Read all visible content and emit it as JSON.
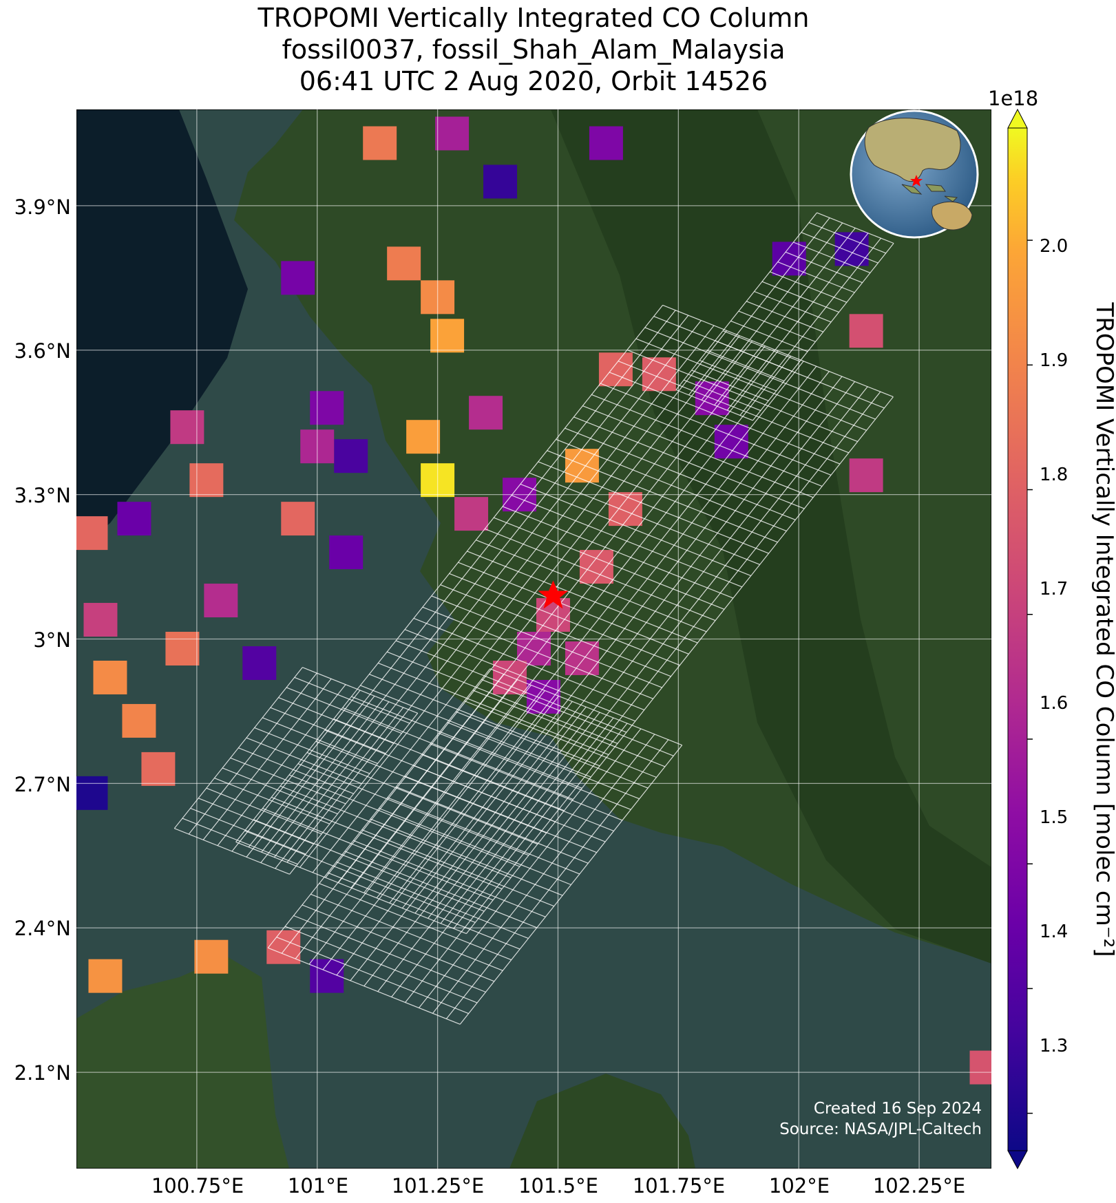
{
  "title": {
    "line1": "TROPOMI Vertically Integrated CO Column",
    "line2": "fossil0037, fossil_Shah_Alam_Malaysia",
    "line3": "06:41 UTC 2 Aug 2020, Orbit 14526"
  },
  "axes": {
    "lat_ticks": [
      "3.9°N",
      "3.6°N",
      "3.3°N",
      "3°N",
      "2.7°N",
      "2.4°N",
      "2.1°N"
    ],
    "lat_values": [
      3.9,
      3.6,
      3.3,
      3.0,
      2.7,
      2.4,
      2.1
    ],
    "lon_ticks": [
      "100.75°E",
      "101°E",
      "101.25°E",
      "101.5°E",
      "101.75°E",
      "102°E",
      "102.25°E"
    ],
    "lon_values": [
      100.75,
      101.0,
      101.25,
      101.5,
      101.75,
      102.0,
      102.25
    ],
    "lon_range": [
      100.5,
      102.4
    ],
    "lat_range": [
      1.9,
      4.1
    ],
    "grid": true
  },
  "colorbar": {
    "label": "TROPOMI Vertically Integrated CO Column [molec cm⁻²]",
    "exponent": "1e18",
    "ticks": [
      "1.3",
      "1.4",
      "1.5",
      "1.6",
      "1.7",
      "1.8",
      "1.9",
      "2.0"
    ],
    "range": [
      1.27,
      2.09
    ],
    "colormap": "plasma",
    "extend": "both"
  },
  "site_marker": {
    "name": "Shah Alam",
    "lon": 101.49,
    "lat": 3.09,
    "color": "#ff0000"
  },
  "credits": {
    "created": "Created 16 Sep 2024",
    "source": "Source: NASA/JPL-Caltech"
  },
  "colors": {
    "water": "#2f4a48",
    "deep_sea": "#0c1e2a",
    "land": "#2e4a26",
    "grid": "#ffffff"
  },
  "inset_globe": {
    "marker_color": "#ff0000"
  },
  "chart_data": {
    "type": "heatmap",
    "units": "1e18 molec cm-2",
    "pixels": [
      {
        "lon": 101.25,
        "lat": 3.33,
        "v": 2.07
      },
      {
        "lon": 101.22,
        "lat": 3.42,
        "v": 1.97
      },
      {
        "lon": 101.27,
        "lat": 3.63,
        "v": 1.98
      },
      {
        "lon": 101.25,
        "lat": 3.71,
        "v": 1.92
      },
      {
        "lon": 101.18,
        "lat": 3.78,
        "v": 1.88
      },
      {
        "lon": 101.13,
        "lat": 4.03,
        "v": 1.87
      },
      {
        "lon": 101.55,
        "lat": 3.36,
        "v": 1.96
      },
      {
        "lon": 100.57,
        "lat": 2.92,
        "v": 1.92
      },
      {
        "lon": 100.63,
        "lat": 2.83,
        "v": 1.9
      },
      {
        "lon": 100.56,
        "lat": 2.3,
        "v": 1.94
      },
      {
        "lon": 100.78,
        "lat": 2.34,
        "v": 1.93
      },
      {
        "lon": 100.53,
        "lat": 3.22,
        "v": 1.82
      },
      {
        "lon": 100.77,
        "lat": 3.33,
        "v": 1.83
      },
      {
        "lon": 100.96,
        "lat": 3.25,
        "v": 1.82
      },
      {
        "lon": 101.64,
        "lat": 3.27,
        "v": 1.8
      },
      {
        "lon": 101.62,
        "lat": 3.56,
        "v": 1.81
      },
      {
        "lon": 101.71,
        "lat": 3.55,
        "v": 1.79
      },
      {
        "lon": 101.58,
        "lat": 3.15,
        "v": 1.78
      },
      {
        "lon": 100.93,
        "lat": 2.36,
        "v": 1.8
      },
      {
        "lon": 100.72,
        "lat": 2.98,
        "v": 1.85
      },
      {
        "lon": 100.67,
        "lat": 2.73,
        "v": 1.83
      },
      {
        "lon": 101.49,
        "lat": 3.05,
        "v": 1.72
      },
      {
        "lon": 101.45,
        "lat": 2.98,
        "v": 1.62
      },
      {
        "lon": 101.55,
        "lat": 2.96,
        "v": 1.66
      },
      {
        "lon": 101.4,
        "lat": 2.92,
        "v": 1.72
      },
      {
        "lon": 101.47,
        "lat": 2.88,
        "v": 1.52
      },
      {
        "lon": 101.32,
        "lat": 3.26,
        "v": 1.68
      },
      {
        "lon": 101.35,
        "lat": 3.47,
        "v": 1.64
      },
      {
        "lon": 101.42,
        "lat": 3.3,
        "v": 1.52
      },
      {
        "lon": 101.82,
        "lat": 3.5,
        "v": 1.52
      },
      {
        "lon": 101.86,
        "lat": 3.41,
        "v": 1.47
      },
      {
        "lon": 102.14,
        "lat": 3.64,
        "v": 1.75
      },
      {
        "lon": 102.14,
        "lat": 3.34,
        "v": 1.68
      },
      {
        "lon": 102.39,
        "lat": 2.11,
        "v": 1.76
      },
      {
        "lon": 101.07,
        "lat": 3.38,
        "v": 1.38
      },
      {
        "lon": 101.02,
        "lat": 3.48,
        "v": 1.5
      },
      {
        "lon": 100.96,
        "lat": 3.75,
        "v": 1.48
      },
      {
        "lon": 101.38,
        "lat": 3.95,
        "v": 1.34
      },
      {
        "lon": 102.11,
        "lat": 3.81,
        "v": 1.36
      },
      {
        "lon": 101.98,
        "lat": 3.79,
        "v": 1.42
      },
      {
        "lon": 100.53,
        "lat": 2.68,
        "v": 1.3
      },
      {
        "lon": 100.62,
        "lat": 3.25,
        "v": 1.45
      },
      {
        "lon": 100.88,
        "lat": 2.95,
        "v": 1.4
      },
      {
        "lon": 101.06,
        "lat": 3.18,
        "v": 1.45
      },
      {
        "lon": 101.02,
        "lat": 2.3,
        "v": 1.4
      },
      {
        "lon": 101.6,
        "lat": 4.03,
        "v": 1.5
      },
      {
        "lon": 101.28,
        "lat": 4.05,
        "v": 1.6
      },
      {
        "lon": 101.0,
        "lat": 3.4,
        "v": 1.62
      },
      {
        "lon": 100.73,
        "lat": 3.44,
        "v": 1.68
      },
      {
        "lon": 100.8,
        "lat": 3.08,
        "v": 1.64
      },
      {
        "lon": 100.55,
        "lat": 3.04,
        "v": 1.7
      }
    ]
  }
}
